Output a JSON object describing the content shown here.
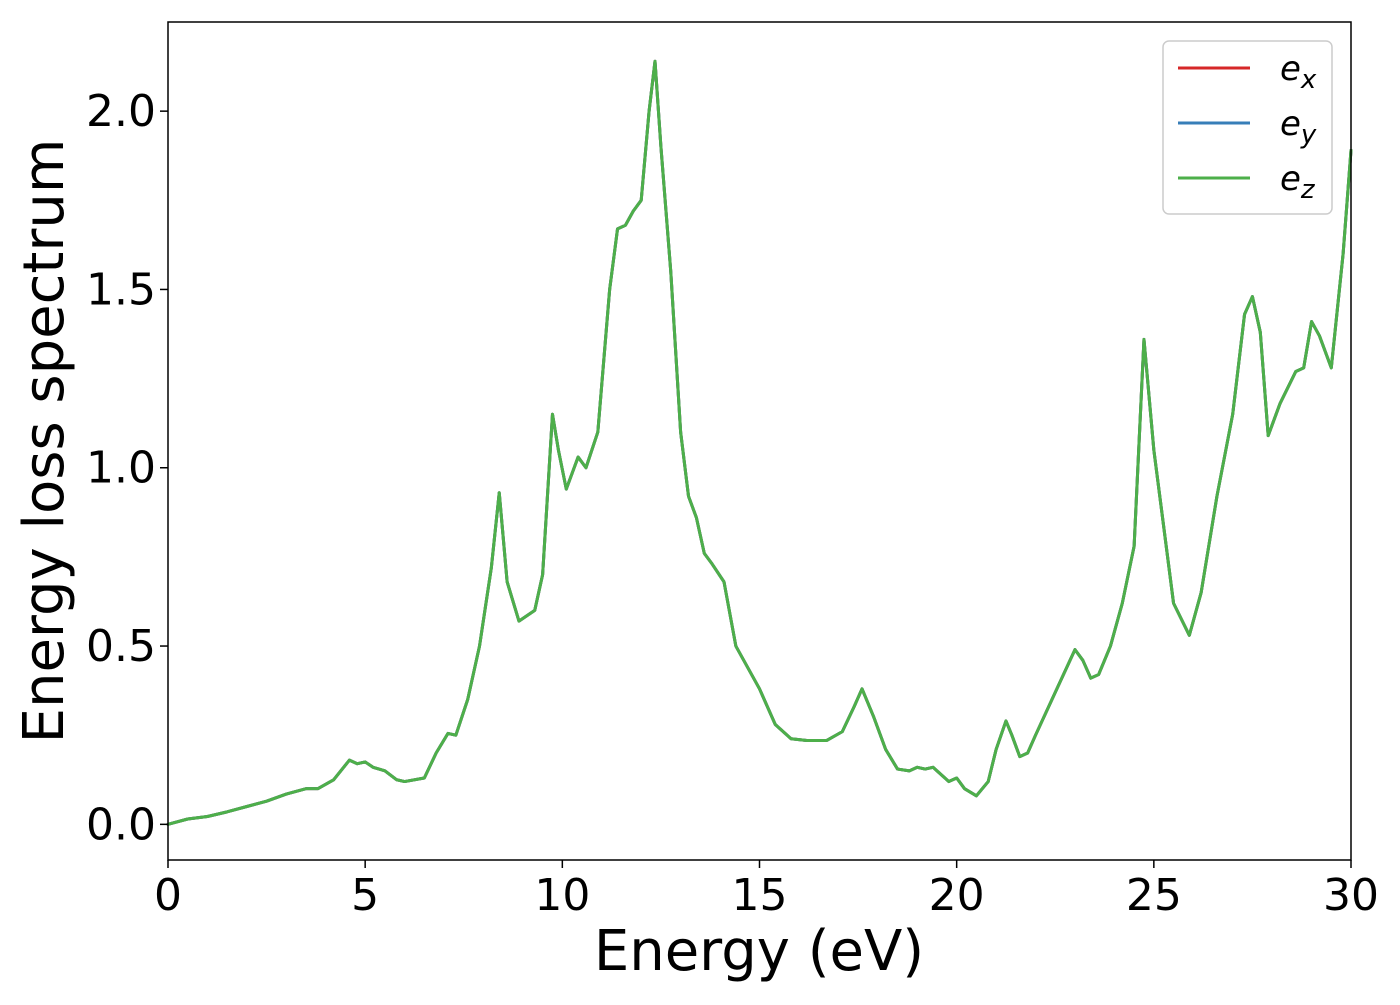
{
  "chart_data": {
    "type": "line",
    "xlabel": "Energy (eV)",
    "ylabel": "Energy loss spectrum",
    "xlim": [
      0,
      30
    ],
    "ylim": [
      -0.1,
      2.25
    ],
    "xticks": [
      0,
      5,
      10,
      15,
      20,
      25,
      30
    ],
    "xtick_labels": [
      "0",
      "5",
      "10",
      "15",
      "20",
      "25",
      "30"
    ],
    "yticks": [
      0.0,
      0.5,
      1.0,
      1.5,
      2.0
    ],
    "ytick_labels": [
      "0.0",
      "0.5",
      "1.0",
      "1.5",
      "2.0"
    ],
    "grid": false,
    "legend_position": "top-right",
    "x": [
      0.0,
      0.5,
      1.0,
      1.5,
      2.0,
      2.5,
      3.0,
      3.5,
      3.8,
      4.2,
      4.6,
      4.8,
      5.0,
      5.2,
      5.5,
      5.8,
      6.0,
      6.5,
      6.8,
      7.1,
      7.3,
      7.6,
      7.9,
      8.2,
      8.4,
      8.6,
      8.9,
      9.3,
      9.5,
      9.75,
      9.9,
      10.1,
      10.3,
      10.4,
      10.6,
      10.9,
      11.2,
      11.4,
      11.6,
      11.8,
      12.0,
      12.2,
      12.35,
      12.5,
      12.75,
      13.0,
      13.2,
      13.4,
      13.6,
      13.8,
      14.1,
      14.4,
      14.7,
      15.0,
      15.4,
      15.8,
      16.2,
      16.7,
      17.1,
      17.4,
      17.6,
      17.9,
      18.2,
      18.5,
      18.8,
      19.0,
      19.2,
      19.4,
      19.6,
      19.8,
      20.0,
      20.2,
      20.5,
      20.8,
      21.0,
      21.25,
      21.4,
      21.6,
      21.8,
      22.0,
      22.5,
      23.0,
      23.2,
      23.4,
      23.6,
      23.9,
      24.2,
      24.5,
      24.75,
      25.0,
      25.5,
      25.9,
      26.2,
      26.6,
      27.0,
      27.3,
      27.5,
      27.7,
      27.9,
      28.2,
      28.6,
      28.8,
      29.0,
      29.2,
      29.5,
      29.8,
      30.0
    ],
    "series": [
      {
        "name": "e_x",
        "color": "#d62728",
        "values": [
          0.0,
          0.015,
          0.022,
          0.035,
          0.05,
          0.065,
          0.085,
          0.1,
          0.1,
          0.125,
          0.18,
          0.17,
          0.175,
          0.16,
          0.15,
          0.125,
          0.12,
          0.13,
          0.2,
          0.255,
          0.25,
          0.35,
          0.5,
          0.72,
          0.93,
          0.68,
          0.57,
          0.6,
          0.7,
          1.15,
          1.05,
          0.94,
          1.0,
          1.03,
          1.0,
          1.1,
          1.5,
          1.67,
          1.68,
          1.72,
          1.75,
          2.0,
          2.14,
          1.9,
          1.55,
          1.1,
          0.92,
          0.86,
          0.76,
          0.73,
          0.68,
          0.5,
          0.44,
          0.38,
          0.28,
          0.24,
          0.235,
          0.235,
          0.26,
          0.33,
          0.38,
          0.3,
          0.21,
          0.155,
          0.15,
          0.16,
          0.155,
          0.16,
          0.14,
          0.12,
          0.13,
          0.1,
          0.08,
          0.12,
          0.21,
          0.29,
          0.25,
          0.19,
          0.2,
          0.25,
          0.37,
          0.49,
          0.46,
          0.41,
          0.42,
          0.5,
          0.62,
          0.78,
          1.36,
          1.05,
          0.62,
          0.53,
          0.65,
          0.92,
          1.15,
          1.43,
          1.48,
          1.38,
          1.09,
          1.18,
          1.27,
          1.28,
          1.41,
          1.37,
          1.28,
          1.6,
          1.89
        ]
      },
      {
        "name": "e_y",
        "color": "#377eb8",
        "values": [
          0.0,
          0.015,
          0.022,
          0.035,
          0.05,
          0.065,
          0.085,
          0.1,
          0.1,
          0.125,
          0.18,
          0.17,
          0.175,
          0.16,
          0.15,
          0.125,
          0.12,
          0.13,
          0.2,
          0.255,
          0.25,
          0.35,
          0.5,
          0.72,
          0.93,
          0.68,
          0.57,
          0.6,
          0.7,
          1.15,
          1.05,
          0.94,
          1.0,
          1.03,
          1.0,
          1.1,
          1.5,
          1.67,
          1.68,
          1.72,
          1.75,
          2.0,
          2.14,
          1.9,
          1.55,
          1.1,
          0.92,
          0.86,
          0.76,
          0.73,
          0.68,
          0.5,
          0.44,
          0.38,
          0.28,
          0.24,
          0.235,
          0.235,
          0.26,
          0.33,
          0.38,
          0.3,
          0.21,
          0.155,
          0.15,
          0.16,
          0.155,
          0.16,
          0.14,
          0.12,
          0.13,
          0.1,
          0.08,
          0.12,
          0.21,
          0.29,
          0.25,
          0.19,
          0.2,
          0.25,
          0.37,
          0.49,
          0.46,
          0.41,
          0.42,
          0.5,
          0.62,
          0.78,
          1.36,
          1.05,
          0.62,
          0.53,
          0.65,
          0.92,
          1.15,
          1.43,
          1.48,
          1.38,
          1.09,
          1.18,
          1.27,
          1.28,
          1.41,
          1.37,
          1.28,
          1.6,
          1.89
        ]
      },
      {
        "name": "e_z",
        "color": "#4daf4a",
        "values": [
          0.0,
          0.015,
          0.022,
          0.035,
          0.05,
          0.065,
          0.085,
          0.1,
          0.1,
          0.125,
          0.18,
          0.17,
          0.175,
          0.16,
          0.15,
          0.125,
          0.12,
          0.13,
          0.2,
          0.255,
          0.25,
          0.35,
          0.5,
          0.72,
          0.93,
          0.68,
          0.57,
          0.6,
          0.7,
          1.15,
          1.05,
          0.94,
          1.0,
          1.03,
          1.0,
          1.1,
          1.5,
          1.67,
          1.68,
          1.72,
          1.75,
          2.0,
          2.14,
          1.9,
          1.55,
          1.1,
          0.92,
          0.86,
          0.76,
          0.73,
          0.68,
          0.5,
          0.44,
          0.38,
          0.28,
          0.24,
          0.235,
          0.235,
          0.26,
          0.33,
          0.38,
          0.3,
          0.21,
          0.155,
          0.15,
          0.16,
          0.155,
          0.16,
          0.14,
          0.12,
          0.13,
          0.1,
          0.08,
          0.12,
          0.21,
          0.29,
          0.25,
          0.19,
          0.2,
          0.25,
          0.37,
          0.49,
          0.46,
          0.41,
          0.42,
          0.5,
          0.62,
          0.78,
          1.36,
          1.05,
          0.62,
          0.53,
          0.65,
          0.92,
          1.15,
          1.43,
          1.48,
          1.38,
          1.09,
          1.18,
          1.27,
          1.28,
          1.41,
          1.37,
          1.28,
          1.6,
          1.89
        ]
      }
    ],
    "legend": [
      {
        "base": "e",
        "sub": "x",
        "color": "#d62728"
      },
      {
        "base": "e",
        "sub": "y",
        "color": "#377eb8"
      },
      {
        "base": "e",
        "sub": "z",
        "color": "#4daf4a"
      }
    ]
  }
}
